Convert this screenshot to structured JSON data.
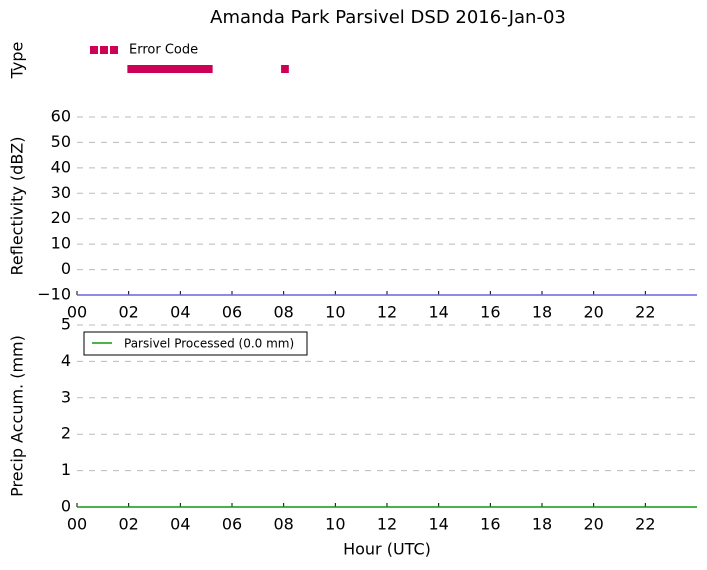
{
  "title": "Amanda Park Parsivel DSD 2016-Jan-03",
  "chart_data": [
    {
      "type": "timeline",
      "ylabel": "Type",
      "xlim": [
        0,
        24
      ],
      "series": [
        {
          "name": "Error Code",
          "color": "#cc0055",
          "start": [
            1.95,
            7.9
          ],
          "end": [
            5.25,
            8.2
          ]
        }
      ]
    },
    {
      "type": "line",
      "ylabel": "Reflectivity (dBZ)",
      "xlim": [
        0,
        24
      ],
      "ylim": [
        -10,
        60
      ],
      "yticks": [
        {
          "value": -10,
          "label": "−10"
        },
        0,
        10,
        20,
        30,
        40,
        50,
        60
      ],
      "xticks": [
        {
          "value": 0,
          "label": "00"
        },
        {
          "value": 2,
          "label": "02"
        },
        {
          "value": 4,
          "label": "04"
        },
        {
          "value": 6,
          "label": "06"
        },
        {
          "value": 8,
          "label": "08"
        },
        10,
        12,
        14,
        16,
        18,
        20,
        22
      ],
      "grid": true,
      "series": [
        {
          "color": "#6666dd",
          "x": [
            0,
            24
          ],
          "values": [
            -10,
            -10
          ]
        }
      ]
    },
    {
      "type": "line",
      "ylabel": "Precip Accum. (mm)",
      "xlabel": "Hour (UTC)",
      "xlim": [
        0,
        24
      ],
      "ylim": [
        0,
        5
      ],
      "yticks": [
        0,
        1,
        2,
        3,
        4,
        5
      ],
      "xticks": [
        {
          "value": 0,
          "label": "00"
        },
        {
          "value": 2,
          "label": "02"
        },
        {
          "value": 4,
          "label": "04"
        },
        {
          "value": 6,
          "label": "06"
        },
        {
          "value": 8,
          "label": "08"
        },
        10,
        12,
        14,
        16,
        18,
        20,
        22
      ],
      "grid": true,
      "legend": "upper-left",
      "series": [
        {
          "name": "Parsivel Processed (0.0 mm)",
          "color": "#119911",
          "x": [
            0,
            24
          ],
          "values": [
            0,
            0
          ]
        }
      ]
    }
  ]
}
